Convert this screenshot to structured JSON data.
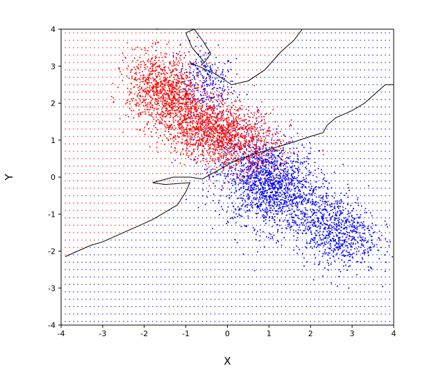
{
  "chart_data": {
    "type": "scatter",
    "title": "",
    "xlabel": "X",
    "ylabel": "Y",
    "xlim": [
      -4,
      4
    ],
    "ylim": [
      -4,
      4
    ],
    "xticks": [
      -4,
      -3,
      -2,
      -1,
      0,
      1,
      2,
      3,
      4
    ],
    "yticks": [
      -4,
      -3,
      -2,
      -1,
      0,
      1,
      2,
      3,
      4
    ],
    "xtick_labels": [
      "-4",
      "-3",
      "-2",
      "-1",
      "0",
      "1",
      "2",
      "3",
      "4"
    ],
    "ytick_labels": [
      "-4",
      "-3",
      "-2",
      "-1",
      "0",
      "1",
      "2",
      "3",
      "4"
    ],
    "grid": true,
    "legend": "none",
    "background_grid_spacing": 0.1,
    "series": [
      {
        "color": "#ff0000",
        "clusters": [
          {
            "center": [
              -1.5,
              2.3
            ],
            "spread": [
              0.45,
              0.5
            ],
            "share": 0.38
          },
          {
            "center": [
              -0.2,
              1.2
            ],
            "spread": [
              0.7,
              0.45
            ],
            "share": 0.62
          }
        ]
      },
      {
        "color": "#0000ff",
        "clusters": [
          {
            "center": [
              -0.5,
              2.6
            ],
            "spread": [
              0.35,
              0.45
            ],
            "share": 0.1
          },
          {
            "center": [
              1.0,
              -0.2
            ],
            "spread": [
              0.6,
              0.6
            ],
            "share": 0.6
          },
          {
            "center": [
              2.6,
              -1.4
            ],
            "spread": [
              0.5,
              0.5
            ],
            "share": 0.3
          }
        ]
      }
    ],
    "decision_boundary": [
      [
        -3.9,
        -2.15
      ],
      [
        -3.6,
        -2.0
      ],
      [
        -3.3,
        -1.85
      ],
      [
        -3.0,
        -1.75
      ],
      [
        -2.7,
        -1.6
      ],
      [
        -2.4,
        -1.45
      ],
      [
        -2.1,
        -1.3
      ],
      [
        -1.8,
        -1.15
      ],
      [
        -1.5,
        -0.95
      ],
      [
        -1.2,
        -0.75
      ],
      [
        -1.0,
        -0.4
      ],
      [
        -0.9,
        -0.15
      ],
      [
        -1.5,
        -0.2
      ],
      [
        -1.8,
        -0.15
      ],
      [
        -1.3,
        0.0
      ],
      [
        -0.9,
        0.0
      ],
      [
        -0.6,
        -0.05
      ],
      [
        0.2,
        0.45
      ],
      [
        1.0,
        0.75
      ],
      [
        1.6,
        0.95
      ],
      [
        2.0,
        1.1
      ],
      [
        2.3,
        1.2
      ],
      [
        2.4,
        1.4
      ],
      [
        2.6,
        1.6
      ],
      [
        3.0,
        1.8
      ],
      [
        3.3,
        2.0
      ],
      [
        3.6,
        2.3
      ],
      [
        3.8,
        2.5
      ],
      [
        4.0,
        2.5
      ]
    ],
    "boundary_upper": [
      [
        -0.9,
        3.1
      ],
      [
        -0.3,
        2.8
      ],
      [
        0.1,
        2.5
      ],
      [
        0.5,
        2.6
      ],
      [
        0.9,
        2.9
      ],
      [
        1.3,
        3.4
      ],
      [
        1.6,
        3.7
      ],
      [
        1.8,
        4.0
      ]
    ],
    "boundary_top": [
      [
        -1.0,
        3.9
      ],
      [
        -0.8,
        4.0
      ],
      [
        -0.6,
        3.7
      ],
      [
        -0.4,
        3.35
      ],
      [
        -0.55,
        3.1
      ],
      [
        -0.85,
        3.5
      ],
      [
        -1.0,
        3.9
      ]
    ]
  }
}
